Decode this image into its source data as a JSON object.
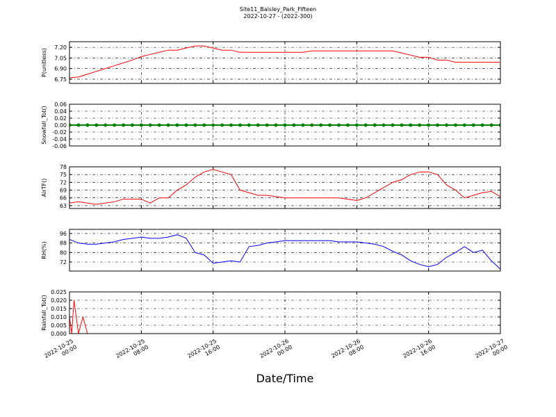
{
  "title": "Site11_Baisley_Park_Fifteen",
  "subtitle": "2022-10-27 - (2022-300)",
  "xlabel": "Date/Time",
  "chart_data": [
    {
      "type": "line",
      "ylabel": "P(unitless)",
      "color": "#ff0000",
      "grid": true,
      "ylim": [
        6.69,
        7.28
      ],
      "yticks": [
        6.75,
        {
          "value": 6.9,
          "label": "6.90"
        },
        7.05,
        {
          "value": 7.2,
          "label": "7.20"
        }
      ],
      "x": [
        "2022-10-25 00:00",
        "2022-10-25 01:00",
        "2022-10-25 02:00",
        "2022-10-25 03:00",
        "2022-10-25 04:00",
        "2022-10-25 05:00",
        "2022-10-25 06:00",
        "2022-10-25 07:00",
        "2022-10-25 08:00",
        "2022-10-25 09:00",
        "2022-10-25 10:00",
        "2022-10-25 11:00",
        "2022-10-25 12:00",
        "2022-10-25 13:00",
        "2022-10-25 14:00",
        "2022-10-25 15:00",
        "2022-10-25 16:00",
        "2022-10-25 17:00",
        "2022-10-25 18:00",
        "2022-10-25 19:00",
        "2022-10-25 20:00",
        "2022-10-25 21:00",
        "2022-10-25 22:00",
        "2022-10-25 23:00",
        "2022-10-26 00:00",
        "2022-10-26 01:00",
        "2022-10-26 02:00",
        "2022-10-26 03:00",
        "2022-10-26 04:00",
        "2022-10-26 05:00",
        "2022-10-26 06:00",
        "2022-10-26 07:00",
        "2022-10-26 08:00",
        "2022-10-26 09:00",
        "2022-10-26 10:00",
        "2022-10-26 11:00",
        "2022-10-26 12:00",
        "2022-10-26 13:00",
        "2022-10-26 14:00",
        "2022-10-26 15:00",
        "2022-10-26 16:00",
        "2022-10-26 17:00",
        "2022-10-26 18:00",
        "2022-10-26 19:00",
        "2022-10-26 20:00",
        "2022-10-26 21:00",
        "2022-10-26 22:00",
        "2022-10-26 23:00",
        "2022-10-27 00:00"
      ],
      "values": [
        6.77,
        6.78,
        6.82,
        6.86,
        6.9,
        6.94,
        6.98,
        7.02,
        7.07,
        7.1,
        7.13,
        7.16,
        7.16,
        7.19,
        7.22,
        7.22,
        7.19,
        7.16,
        7.16,
        7.13,
        7.13,
        7.13,
        7.13,
        7.13,
        7.13,
        7.13,
        7.13,
        7.15,
        7.15,
        7.15,
        7.15,
        7.15,
        7.15,
        7.15,
        7.15,
        7.15,
        7.15,
        7.12,
        7.09,
        7.06,
        7.06,
        7.02,
        7.02,
        6.99,
        6.99,
        6.99,
        6.99,
        6.99,
        6.99
      ]
    },
    {
      "type": "line",
      "ylabel": "Snowfall_Tot()",
      "color": "#008000",
      "grid": true,
      "markers": true,
      "ylim": [
        -0.06,
        0.06
      ],
      "yticks": [
        -0.06,
        -0.04,
        -0.02,
        {
          "value": 0,
          "label": "0.00"
        },
        0.02,
        0.04,
        0.06
      ],
      "x": [
        "2022-10-25 00:00",
        "2022-10-25 01:00",
        "2022-10-25 02:00",
        "2022-10-25 03:00",
        "2022-10-25 04:00",
        "2022-10-25 05:00",
        "2022-10-25 06:00",
        "2022-10-25 07:00",
        "2022-10-25 08:00",
        "2022-10-25 09:00",
        "2022-10-25 10:00",
        "2022-10-25 11:00",
        "2022-10-25 12:00",
        "2022-10-25 13:00",
        "2022-10-25 14:00",
        "2022-10-25 15:00",
        "2022-10-25 16:00",
        "2022-10-25 17:00",
        "2022-10-25 18:00",
        "2022-10-25 19:00",
        "2022-10-25 20:00",
        "2022-10-25 21:00",
        "2022-10-25 22:00",
        "2022-10-25 23:00",
        "2022-10-26 00:00",
        "2022-10-26 01:00",
        "2022-10-26 02:00",
        "2022-10-26 03:00",
        "2022-10-26 04:00",
        "2022-10-26 05:00",
        "2022-10-26 06:00",
        "2022-10-26 07:00",
        "2022-10-26 08:00",
        "2022-10-26 09:00",
        "2022-10-26 10:00",
        "2022-10-26 11:00",
        "2022-10-26 12:00",
        "2022-10-26 13:00",
        "2022-10-26 14:00",
        "2022-10-26 15:00",
        "2022-10-26 16:00",
        "2022-10-26 17:00",
        "2022-10-26 18:00",
        "2022-10-26 19:00",
        "2022-10-26 20:00",
        "2022-10-26 21:00",
        "2022-10-26 22:00",
        "2022-10-26 23:00",
        "2022-10-27 00:00"
      ],
      "values": [
        0,
        0,
        0,
        0,
        0,
        0,
        0,
        0,
        0,
        0,
        0,
        0,
        0,
        0,
        0,
        0,
        0,
        0,
        0,
        0,
        0,
        0,
        0,
        0,
        0,
        0,
        0,
        0,
        0,
        0,
        0,
        0,
        0,
        0,
        0,
        0,
        0,
        0,
        0,
        0,
        0,
        0,
        0,
        0,
        0,
        0,
        0,
        0,
        0
      ]
    },
    {
      "type": "line",
      "ylabel": "AirTF()",
      "color": "#ff0000",
      "grid": true,
      "ylim": [
        61.9,
        78
      ],
      "yticks": [
        63,
        66,
        69,
        72,
        75,
        78
      ],
      "x": [
        "2022-10-25 00:00",
        "2022-10-25 01:00",
        "2022-10-25 02:00",
        "2022-10-25 03:00",
        "2022-10-25 04:00",
        "2022-10-25 05:00",
        "2022-10-25 06:00",
        "2022-10-25 07:00",
        "2022-10-25 08:00",
        "2022-10-25 09:00",
        "2022-10-25 10:00",
        "2022-10-25 11:00",
        "2022-10-25 12:00",
        "2022-10-25 13:00",
        "2022-10-25 14:00",
        "2022-10-25 15:00",
        "2022-10-25 16:00",
        "2022-10-25 17:00",
        "2022-10-25 18:00",
        "2022-10-25 19:00",
        "2022-10-25 20:00",
        "2022-10-25 21:00",
        "2022-10-25 22:00",
        "2022-10-25 23:00",
        "2022-10-26 00:00",
        "2022-10-26 01:00",
        "2022-10-26 02:00",
        "2022-10-26 03:00",
        "2022-10-26 04:00",
        "2022-10-26 05:00",
        "2022-10-26 06:00",
        "2022-10-26 07:00",
        "2022-10-26 08:00",
        "2022-10-26 09:00",
        "2022-10-26 10:00",
        "2022-10-26 11:00",
        "2022-10-26 12:00",
        "2022-10-26 13:00",
        "2022-10-26 14:00",
        "2022-10-26 15:00",
        "2022-10-26 16:00",
        "2022-10-26 17:00",
        "2022-10-26 18:00",
        "2022-10-26 19:00",
        "2022-10-26 20:00",
        "2022-10-26 21:00",
        "2022-10-26 22:00",
        "2022-10-26 23:00",
        "2022-10-27 00:00"
      ],
      "values": [
        64,
        64.5,
        64,
        63.5,
        64,
        64.5,
        65.5,
        65.5,
        65.5,
        64,
        66,
        66,
        69,
        71,
        74,
        76,
        77,
        76,
        75,
        69,
        68,
        67,
        67,
        66.5,
        66,
        66,
        66,
        66,
        66,
        66,
        66,
        65.5,
        65,
        66,
        68,
        70,
        72,
        73,
        75,
        76,
        76,
        75,
        71,
        69,
        66,
        67,
        68,
        68.5,
        66.5
      ]
    },
    {
      "type": "line",
      "ylabel": "RH(%)",
      "color": "#0000ff",
      "grid": true,
      "ylim": [
        64.4,
        99.5
      ],
      "yticks": [
        72,
        80,
        88,
        96
      ],
      "x": [
        "2022-10-25 00:00",
        "2022-10-25 01:00",
        "2022-10-25 02:00",
        "2022-10-25 03:00",
        "2022-10-25 04:00",
        "2022-10-25 05:00",
        "2022-10-25 06:00",
        "2022-10-25 07:00",
        "2022-10-25 08:00",
        "2022-10-25 09:00",
        "2022-10-25 10:00",
        "2022-10-25 11:00",
        "2022-10-25 12:00",
        "2022-10-25 13:00",
        "2022-10-25 14:00",
        "2022-10-25 15:00",
        "2022-10-25 16:00",
        "2022-10-25 17:00",
        "2022-10-25 18:00",
        "2022-10-25 19:00",
        "2022-10-25 20:00",
        "2022-10-25 21:00",
        "2022-10-25 22:00",
        "2022-10-25 23:00",
        "2022-10-26 00:00",
        "2022-10-26 01:00",
        "2022-10-26 02:00",
        "2022-10-26 03:00",
        "2022-10-26 04:00",
        "2022-10-26 05:00",
        "2022-10-26 06:00",
        "2022-10-26 07:00",
        "2022-10-26 08:00",
        "2022-10-26 09:00",
        "2022-10-26 10:00",
        "2022-10-26 11:00",
        "2022-10-26 12:00",
        "2022-10-26 13:00",
        "2022-10-26 14:00",
        "2022-10-26 15:00",
        "2022-10-26 16:00",
        "2022-10-26 17:00",
        "2022-10-26 18:00",
        "2022-10-26 19:00",
        "2022-10-26 20:00",
        "2022-10-26 21:00",
        "2022-10-26 22:00",
        "2022-10-26 23:00",
        "2022-10-27 00:00"
      ],
      "values": [
        91,
        88,
        87,
        87,
        88,
        89,
        91,
        92,
        93,
        92,
        92,
        93,
        95,
        92,
        80,
        78,
        71,
        72,
        73,
        72,
        85,
        86,
        88,
        89,
        90,
        90,
        90,
        90,
        90,
        90,
        89,
        89,
        89,
        88,
        87,
        85,
        81,
        78,
        73,
        70,
        68,
        70,
        76,
        80,
        85,
        80,
        82,
        73,
        66
      ]
    },
    {
      "type": "line",
      "ylabel": "Rainfall_Tot()",
      "color": "#ff0000",
      "grid": true,
      "ylim": [
        0,
        0.025
      ],
      "yticks": [
        {
          "value": 0,
          "label": "0.000"
        },
        0.005,
        {
          "value": 0.01,
          "label": "0.010"
        },
        0.015,
        {
          "value": 0.02,
          "label": "0.020"
        },
        0.025
      ],
      "x": [
        "2022-10-25 00:00",
        "2022-10-25 00:15",
        "2022-10-25 00:30",
        "2022-10-25 01:00",
        "2022-10-25 01:30",
        "2022-10-25 02:00",
        "2022-10-27 00:00"
      ],
      "values": [
        0.01,
        0,
        0.02,
        0,
        0.01,
        0,
        0
      ],
      "xlim": [
        "2022-10-25 00:00",
        "2022-10-27 00:00"
      ],
      "xticks": [
        {
          "value": "2022-10-25 00:00",
          "label": "2022-10-25\n00:00"
        },
        {
          "value": "2022-10-25 08:00",
          "label": "2022-10-25\n08:00"
        },
        {
          "value": "2022-10-25 16:00",
          "label": "2022-10-25\n16:00"
        },
        {
          "value": "2022-10-26 00:00",
          "label": "2022-10-26\n00:00"
        },
        {
          "value": "2022-10-26 08:00",
          "label": "2022-10-26\n08:00"
        },
        {
          "value": "2022-10-26 16:00",
          "label": "2022-10-26\n16:00"
        },
        {
          "value": "2022-10-27 00:00",
          "label": "2022-10-27\n00:00"
        }
      ]
    }
  ]
}
